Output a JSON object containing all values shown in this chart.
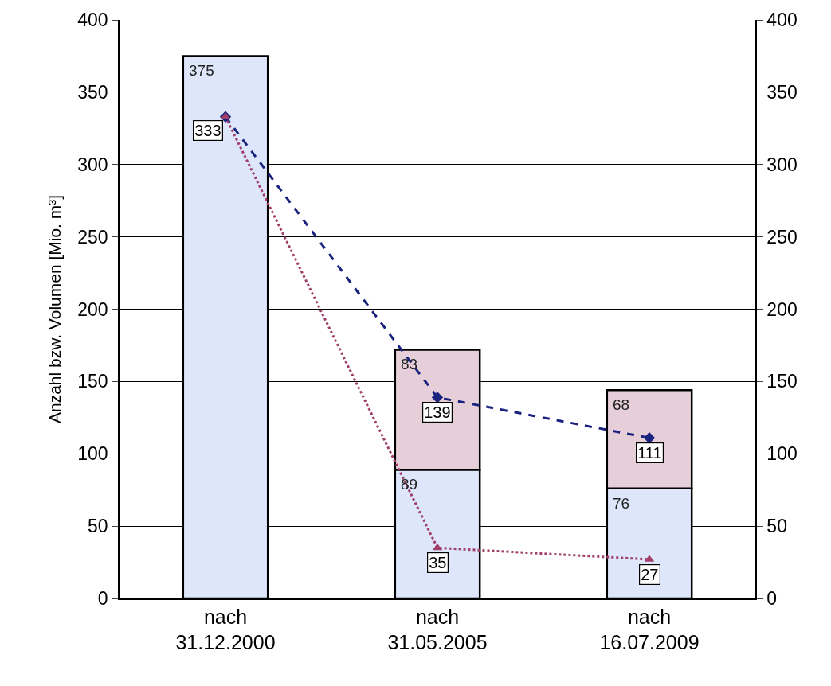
{
  "chart_data": {
    "type": "bar",
    "stacked": true,
    "ylabel": "Anzahl bzw. Volumen [Mio. m³]",
    "categories": [
      "nach\n31.12.2000",
      "nach\n31.05.2005",
      "nach\n16.07.2009"
    ],
    "series": [
      {
        "color": "#dde6fb",
        "values": [
          375,
          89,
          76
        ],
        "value_labels": [
          "375",
          "89",
          "76"
        ]
      },
      {
        "color": "#e6cfd9",
        "values": [
          null,
          83,
          68
        ],
        "value_labels": [
          null,
          "83",
          "68"
        ]
      },
      {
        "type": "line",
        "color": "#1a237e",
        "values": [
          333,
          139,
          111
        ],
        "marker": "diamond",
        "line_style": "dashed",
        "value_labels": [
          "333",
          "139",
          "111"
        ]
      },
      {
        "type": "line",
        "color": "#a0406a",
        "values": [
          333,
          35,
          27
        ],
        "marker": "triangle",
        "line_style": "dotted",
        "value_labels": [
          null,
          "35",
          "27"
        ]
      }
    ],
    "ylim": [
      0,
      400
    ],
    "yticks": [
      0,
      50,
      100,
      150,
      200,
      250,
      300,
      350,
      400
    ],
    "y2lim": [
      0,
      400
    ],
    "y2ticks": [
      0,
      50,
      100,
      150,
      200,
      250,
      300,
      350,
      400
    ],
    "grid": "y"
  }
}
